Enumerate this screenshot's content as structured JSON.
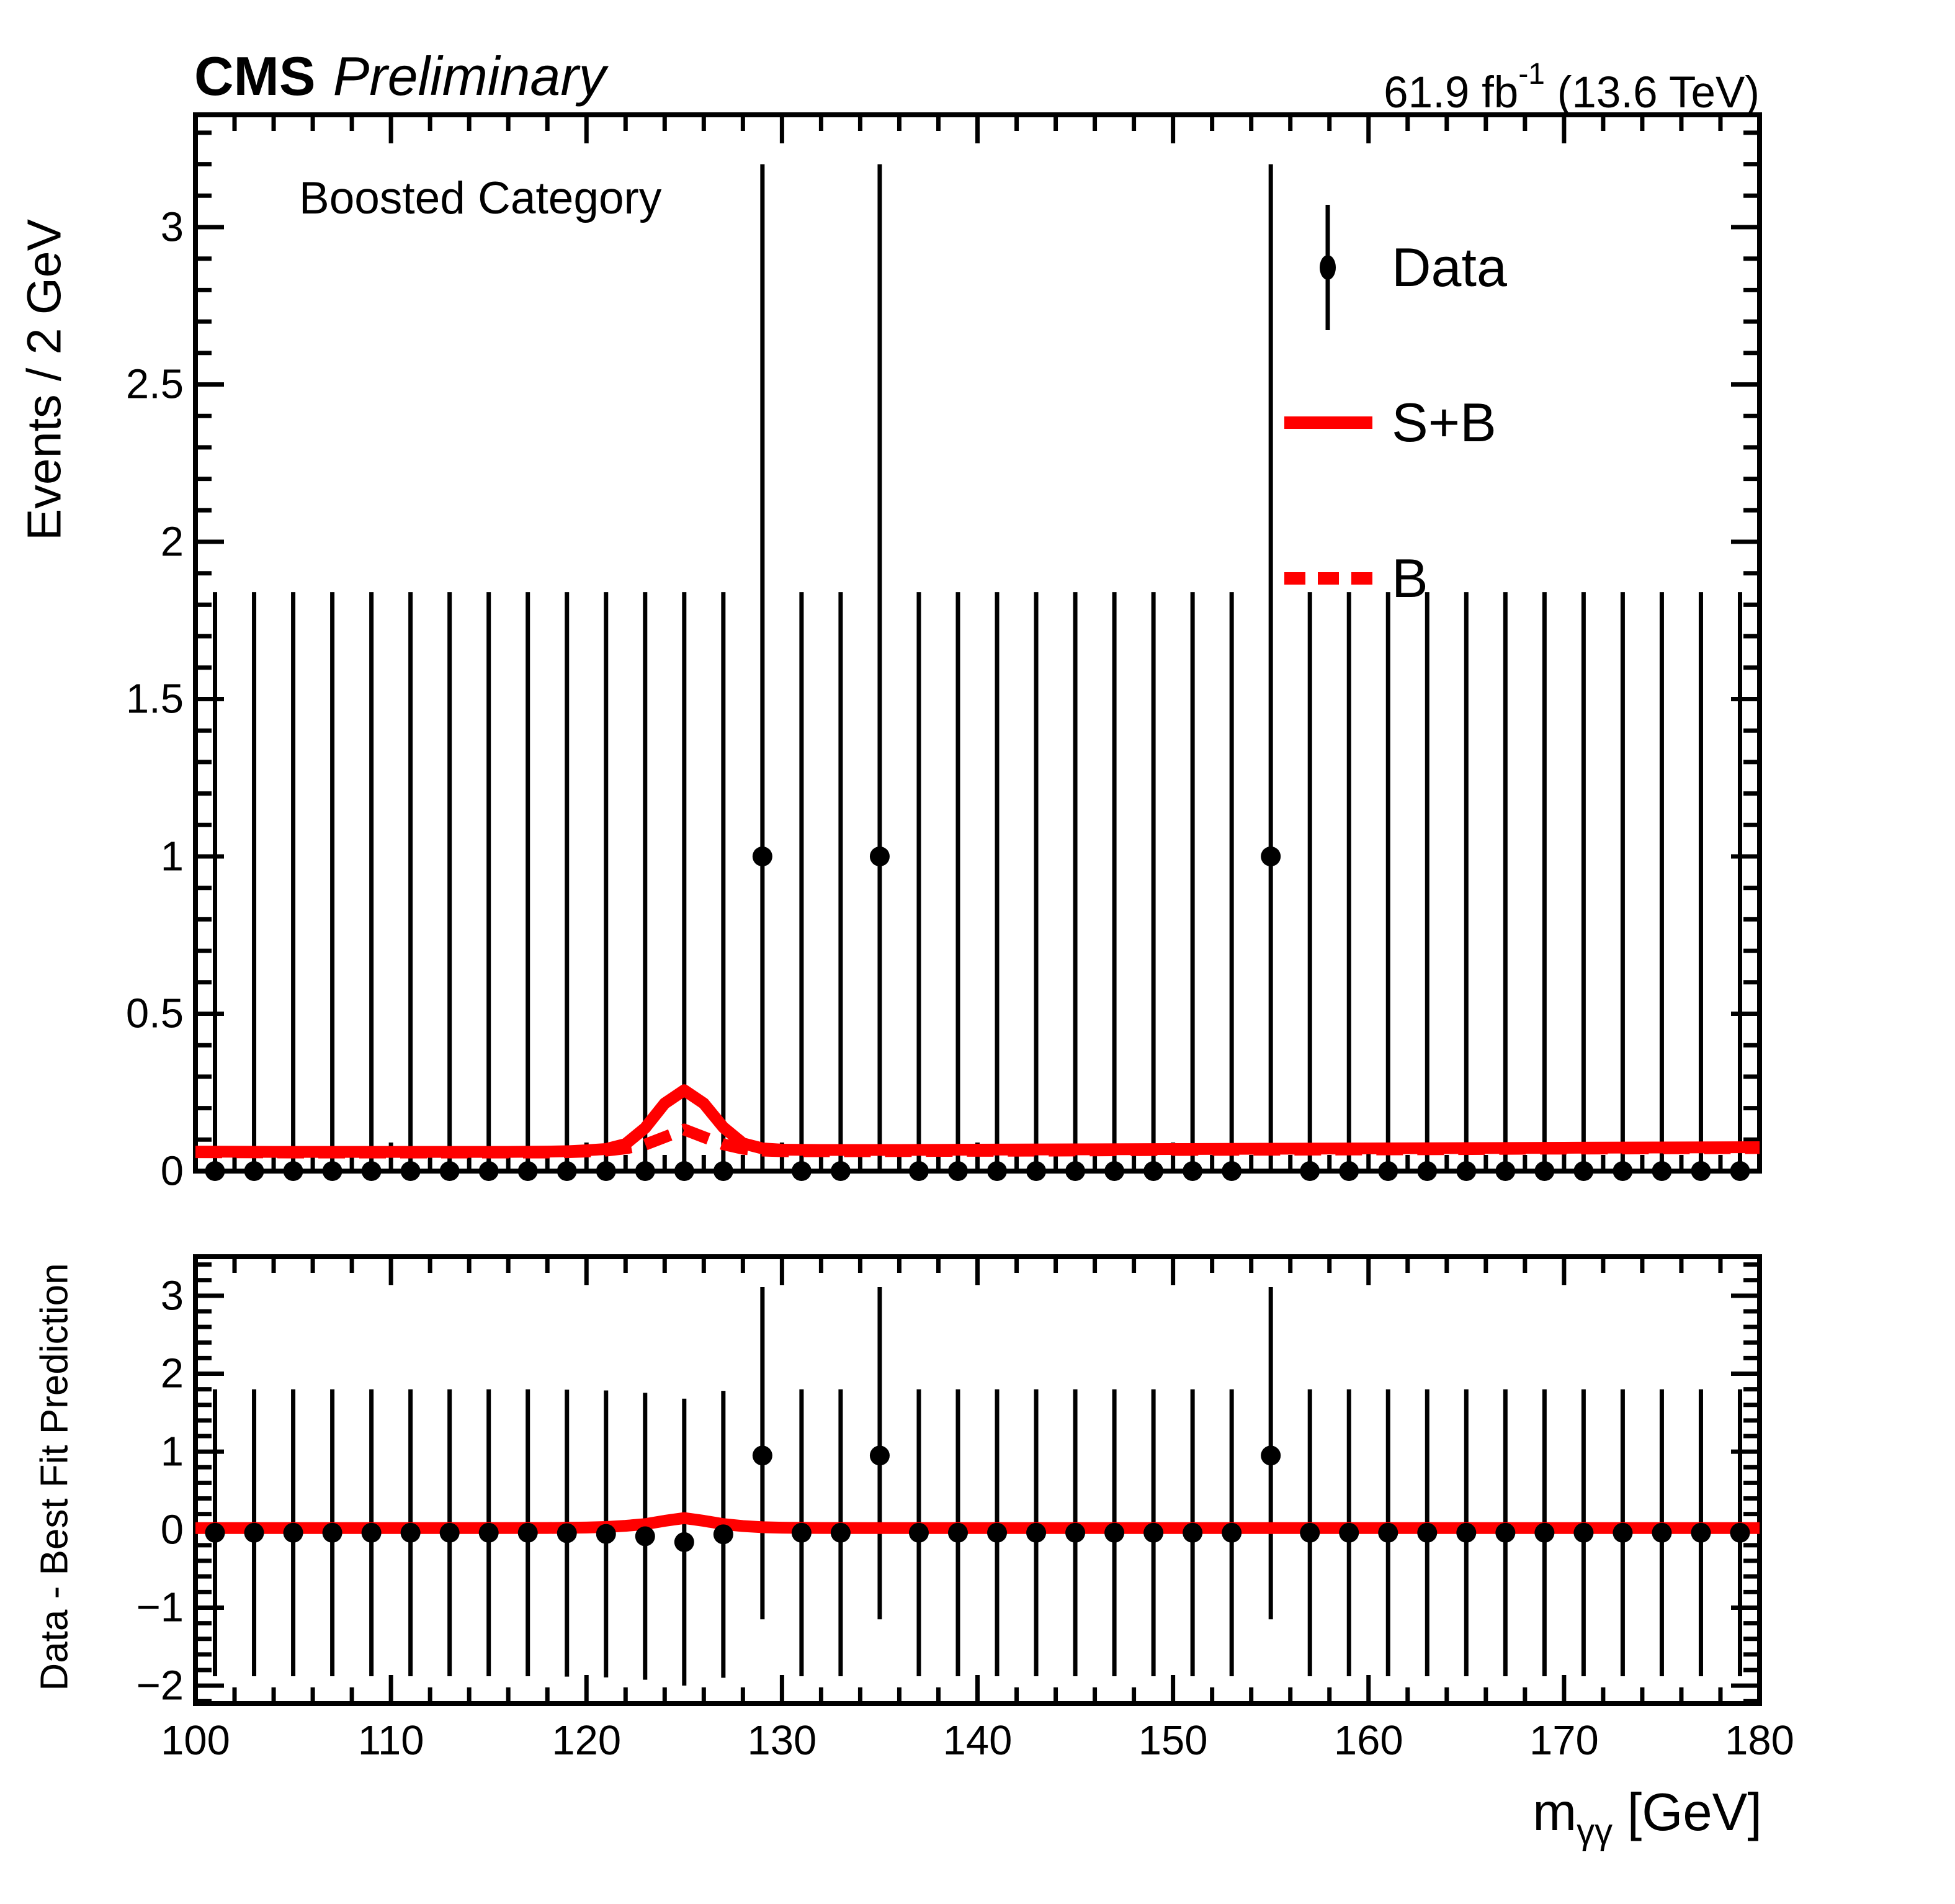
{
  "header": {
    "experiment": "CMS",
    "status": "Preliminary",
    "lumi_prefix": "61.9 fb",
    "lumi_sup": "-1",
    "lumi_suffix": " (13.6 TeV)"
  },
  "category_label": "Boosted Category",
  "legend": {
    "items": [
      {
        "label": "Data",
        "type": "marker"
      },
      {
        "label": "S+B",
        "type": "solid-line"
      },
      {
        "label": "B",
        "type": "dashed-line"
      }
    ]
  },
  "colors": {
    "fit_red": "#ff0000",
    "data_black": "#000000",
    "frame": "#000000"
  },
  "xaxis": {
    "title_m": "m",
    "title_sub": "γγ",
    "title_unit": " [GeV]",
    "lim": [
      100,
      180
    ],
    "major_ticks": [
      {
        "v": 100,
        "label": "100"
      },
      {
        "v": 110,
        "label": "110"
      },
      {
        "v": 120,
        "label": "120"
      },
      {
        "v": 130,
        "label": "130"
      },
      {
        "v": 140,
        "label": "140"
      },
      {
        "v": 150,
        "label": "150"
      },
      {
        "v": 160,
        "label": "160"
      },
      {
        "v": 170,
        "label": "170"
      },
      {
        "v": 180,
        "label": "180"
      }
    ],
    "minor_step": 2
  },
  "chart_data": {
    "type": "scatter+line (HEP mass-fit plot with residual panel)",
    "title": "CMS Preliminary H->gammagamma Boosted Category",
    "panels": [
      {
        "name": "main",
        "ylabel": "Events / 2 GeV",
        "ylim": [
          0,
          3.357
        ],
        "major_ticks": [
          {
            "v": 0,
            "label": "0"
          },
          {
            "v": 0.5,
            "label": "0.5"
          },
          {
            "v": 1,
            "label": "1"
          },
          {
            "v": 1.5,
            "label": "1.5"
          },
          {
            "v": 2,
            "label": "2"
          },
          {
            "v": 2.5,
            "label": "2.5"
          },
          {
            "v": 3,
            "label": "3"
          }
        ],
        "minor_step": 0.1,
        "points": {
          "masses": [
            101,
            103,
            105,
            107,
            109,
            111,
            113,
            115,
            117,
            119,
            121,
            123,
            125,
            127,
            129,
            131,
            133,
            135,
            137,
            139,
            141,
            143,
            145,
            147,
            149,
            151,
            153,
            155,
            157,
            159,
            161,
            163,
            165,
            167,
            169,
            171,
            173,
            175,
            177,
            179
          ],
          "counts": [
            0,
            0,
            0,
            0,
            0,
            0,
            0,
            0,
            0,
            0,
            0,
            0,
            0,
            0,
            1,
            0,
            0,
            1,
            0,
            0,
            0,
            0,
            0,
            0,
            0,
            0,
            0,
            1,
            0,
            0,
            0,
            0,
            0,
            0,
            0,
            0,
            0,
            0,
            0,
            0
          ],
          "err_zero": {
            "lo": 0,
            "hi": 1.84
          },
          "err_one": {
            "lo": 0,
            "hi": 3.2
          }
        },
        "curves": {
          "s_plus_b": [
            [
              100,
              0.062
            ],
            [
              104,
              0.061
            ],
            [
              108,
              0.061
            ],
            [
              112,
              0.061
            ],
            [
              116,
              0.061
            ],
            [
              118,
              0.062
            ],
            [
              119,
              0.063
            ],
            [
              120,
              0.066
            ],
            [
              121,
              0.07
            ],
            [
              122,
              0.086
            ],
            [
              123,
              0.137
            ],
            [
              124,
              0.215
            ],
            [
              125,
              0.257
            ],
            [
              126,
              0.215
            ],
            [
              127,
              0.139
            ],
            [
              128,
              0.088
            ],
            [
              129,
              0.072
            ],
            [
              130,
              0.068
            ],
            [
              132,
              0.067
            ],
            [
              136,
              0.067
            ],
            [
              140,
              0.068
            ],
            [
              145,
              0.069
            ],
            [
              150,
              0.07
            ],
            [
              155,
              0.071
            ],
            [
              160,
              0.072
            ],
            [
              165,
              0.073
            ],
            [
              170,
              0.074
            ],
            [
              175,
              0.075
            ],
            [
              180,
              0.076
            ]
          ],
          "b": [
            [
              100,
              0.06
            ],
            [
              105,
              0.059
            ],
            [
              110,
              0.059
            ],
            [
              115,
              0.059
            ],
            [
              118,
              0.059
            ],
            [
              119,
              0.06
            ],
            [
              120,
              0.062
            ],
            [
              121,
              0.065
            ],
            [
              122,
              0.072
            ],
            [
              123,
              0.084
            ],
            [
              124,
              0.108
            ],
            [
              125,
              0.132
            ],
            [
              126,
              0.108
            ],
            [
              127,
              0.085
            ],
            [
              128,
              0.071
            ],
            [
              129,
              0.065
            ],
            [
              130,
              0.063
            ],
            [
              134,
              0.063
            ],
            [
              138,
              0.064
            ],
            [
              144,
              0.065
            ],
            [
              150,
              0.067
            ],
            [
              156,
              0.068
            ],
            [
              162,
              0.069
            ],
            [
              168,
              0.071
            ],
            [
              174,
              0.072
            ],
            [
              180,
              0.073
            ]
          ]
        }
      },
      {
        "name": "ratio",
        "ylabel": "Data - Best Fit Prediction",
        "ylim": [
          -2.23,
          3.5
        ],
        "major_ticks": [
          {
            "v": 3,
            "label": "3"
          },
          {
            "v": 2,
            "label": "2"
          },
          {
            "v": 1,
            "label": "1"
          },
          {
            "v": 0,
            "label": "0"
          },
          {
            "v": -1,
            "label": "−1"
          },
          {
            "v": -2,
            "label": "−2"
          }
        ],
        "minor_step": 0.2,
        "residuals": [
          -0.04,
          -0.04,
          -0.04,
          -0.04,
          -0.04,
          -0.04,
          -0.04,
          -0.04,
          -0.04,
          -0.045,
          -0.055,
          -0.085,
          -0.16,
          -0.06,
          0.95,
          -0.04,
          -0.04,
          0.95,
          -0.04,
          -0.04,
          -0.04,
          -0.04,
          -0.04,
          -0.04,
          -0.04,
          -0.04,
          -0.04,
          0.95,
          -0.04,
          -0.04,
          -0.04,
          -0.04,
          -0.04,
          -0.04,
          -0.04,
          -0.04,
          -0.04,
          -0.04,
          -0.04,
          -0.04
        ],
        "err_zero_half": 1.84,
        "err_one": {
          "lo": -1.15,
          "hi": 3.11
        },
        "line": [
          [
            100,
            0.02
          ],
          [
            110,
            0.02
          ],
          [
            118,
            0.021
          ],
          [
            120,
            0.027
          ],
          [
            121,
            0.034
          ],
          [
            122,
            0.049
          ],
          [
            123,
            0.071
          ],
          [
            124,
            0.113
          ],
          [
            125,
            0.148
          ],
          [
            126,
            0.113
          ],
          [
            127,
            0.071
          ],
          [
            128,
            0.046
          ],
          [
            129,
            0.031
          ],
          [
            130,
            0.025
          ],
          [
            132,
            0.021
          ],
          [
            136,
            0.02
          ],
          [
            150,
            0.02
          ],
          [
            165,
            0.02
          ],
          [
            180,
            0.02
          ]
        ]
      }
    ]
  }
}
